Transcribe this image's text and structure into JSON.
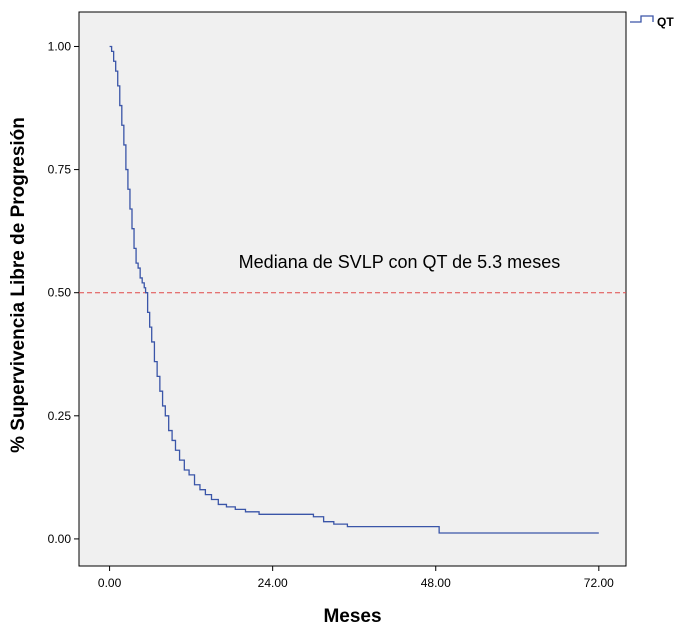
{
  "chart_data": {
    "type": "line",
    "step": true,
    "xlabel": "Meses",
    "ylabel": "% Supervivencia Libre de Progresión",
    "xlim": [
      -4.5,
      76
    ],
    "ylim": [
      -0.055,
      1.07
    ],
    "x_ticks": [
      0,
      24,
      48,
      72
    ],
    "x_tick_labels": [
      "0.00",
      "24.00",
      "48.00",
      "72.00"
    ],
    "y_ticks": [
      0,
      0.25,
      0.5,
      0.75,
      1
    ],
    "y_tick_labels": [
      "0.00",
      "0.25",
      "0.50",
      "0.75",
      "1.00"
    ],
    "grid": false,
    "legend": {
      "position": "top-right outside",
      "entries": [
        "QT"
      ]
    },
    "series": [
      {
        "name": "QT",
        "color": "#3a55a8",
        "x": [
          0,
          0.3,
          0.6,
          0.9,
          1.2,
          1.5,
          1.8,
          2.1,
          2.4,
          2.7,
          3.0,
          3.3,
          3.6,
          3.9,
          4.2,
          4.5,
          4.8,
          5.1,
          5.3,
          5.6,
          5.9,
          6.2,
          6.6,
          7.0,
          7.4,
          7.8,
          8.2,
          8.7,
          9.2,
          9.7,
          10.3,
          11.0,
          11.7,
          12.5,
          13.3,
          14.1,
          15.0,
          16.0,
          17.2,
          18.5,
          20.0,
          22.0,
          24.0,
          26.0,
          28.0,
          30.0,
          31.5,
          33.0,
          35.0,
          40.0,
          45.0,
          48.5,
          52.0,
          60.0,
          66.0,
          72.0
        ],
        "y": [
          1.0,
          0.99,
          0.97,
          0.95,
          0.92,
          0.88,
          0.84,
          0.8,
          0.75,
          0.71,
          0.67,
          0.63,
          0.59,
          0.56,
          0.55,
          0.53,
          0.52,
          0.51,
          0.5,
          0.46,
          0.43,
          0.4,
          0.36,
          0.33,
          0.3,
          0.27,
          0.25,
          0.22,
          0.2,
          0.18,
          0.16,
          0.14,
          0.13,
          0.11,
          0.1,
          0.09,
          0.08,
          0.07,
          0.065,
          0.06,
          0.055,
          0.05,
          0.05,
          0.05,
          0.05,
          0.045,
          0.035,
          0.03,
          0.025,
          0.025,
          0.025,
          0.012,
          0.012,
          0.012,
          0.012,
          0.012
        ]
      }
    ],
    "reference_line": {
      "y": 0.5,
      "color": "#e04848",
      "style": "dashed"
    },
    "annotations": [
      {
        "text": "Mediana de SVLP con QT de 5.3 meses",
        "x": 19,
        "y": 0.55
      }
    ],
    "colors": {
      "plot_background": "#f0f0f0",
      "series": "#3a55a8",
      "reference": "#e04848"
    }
  }
}
